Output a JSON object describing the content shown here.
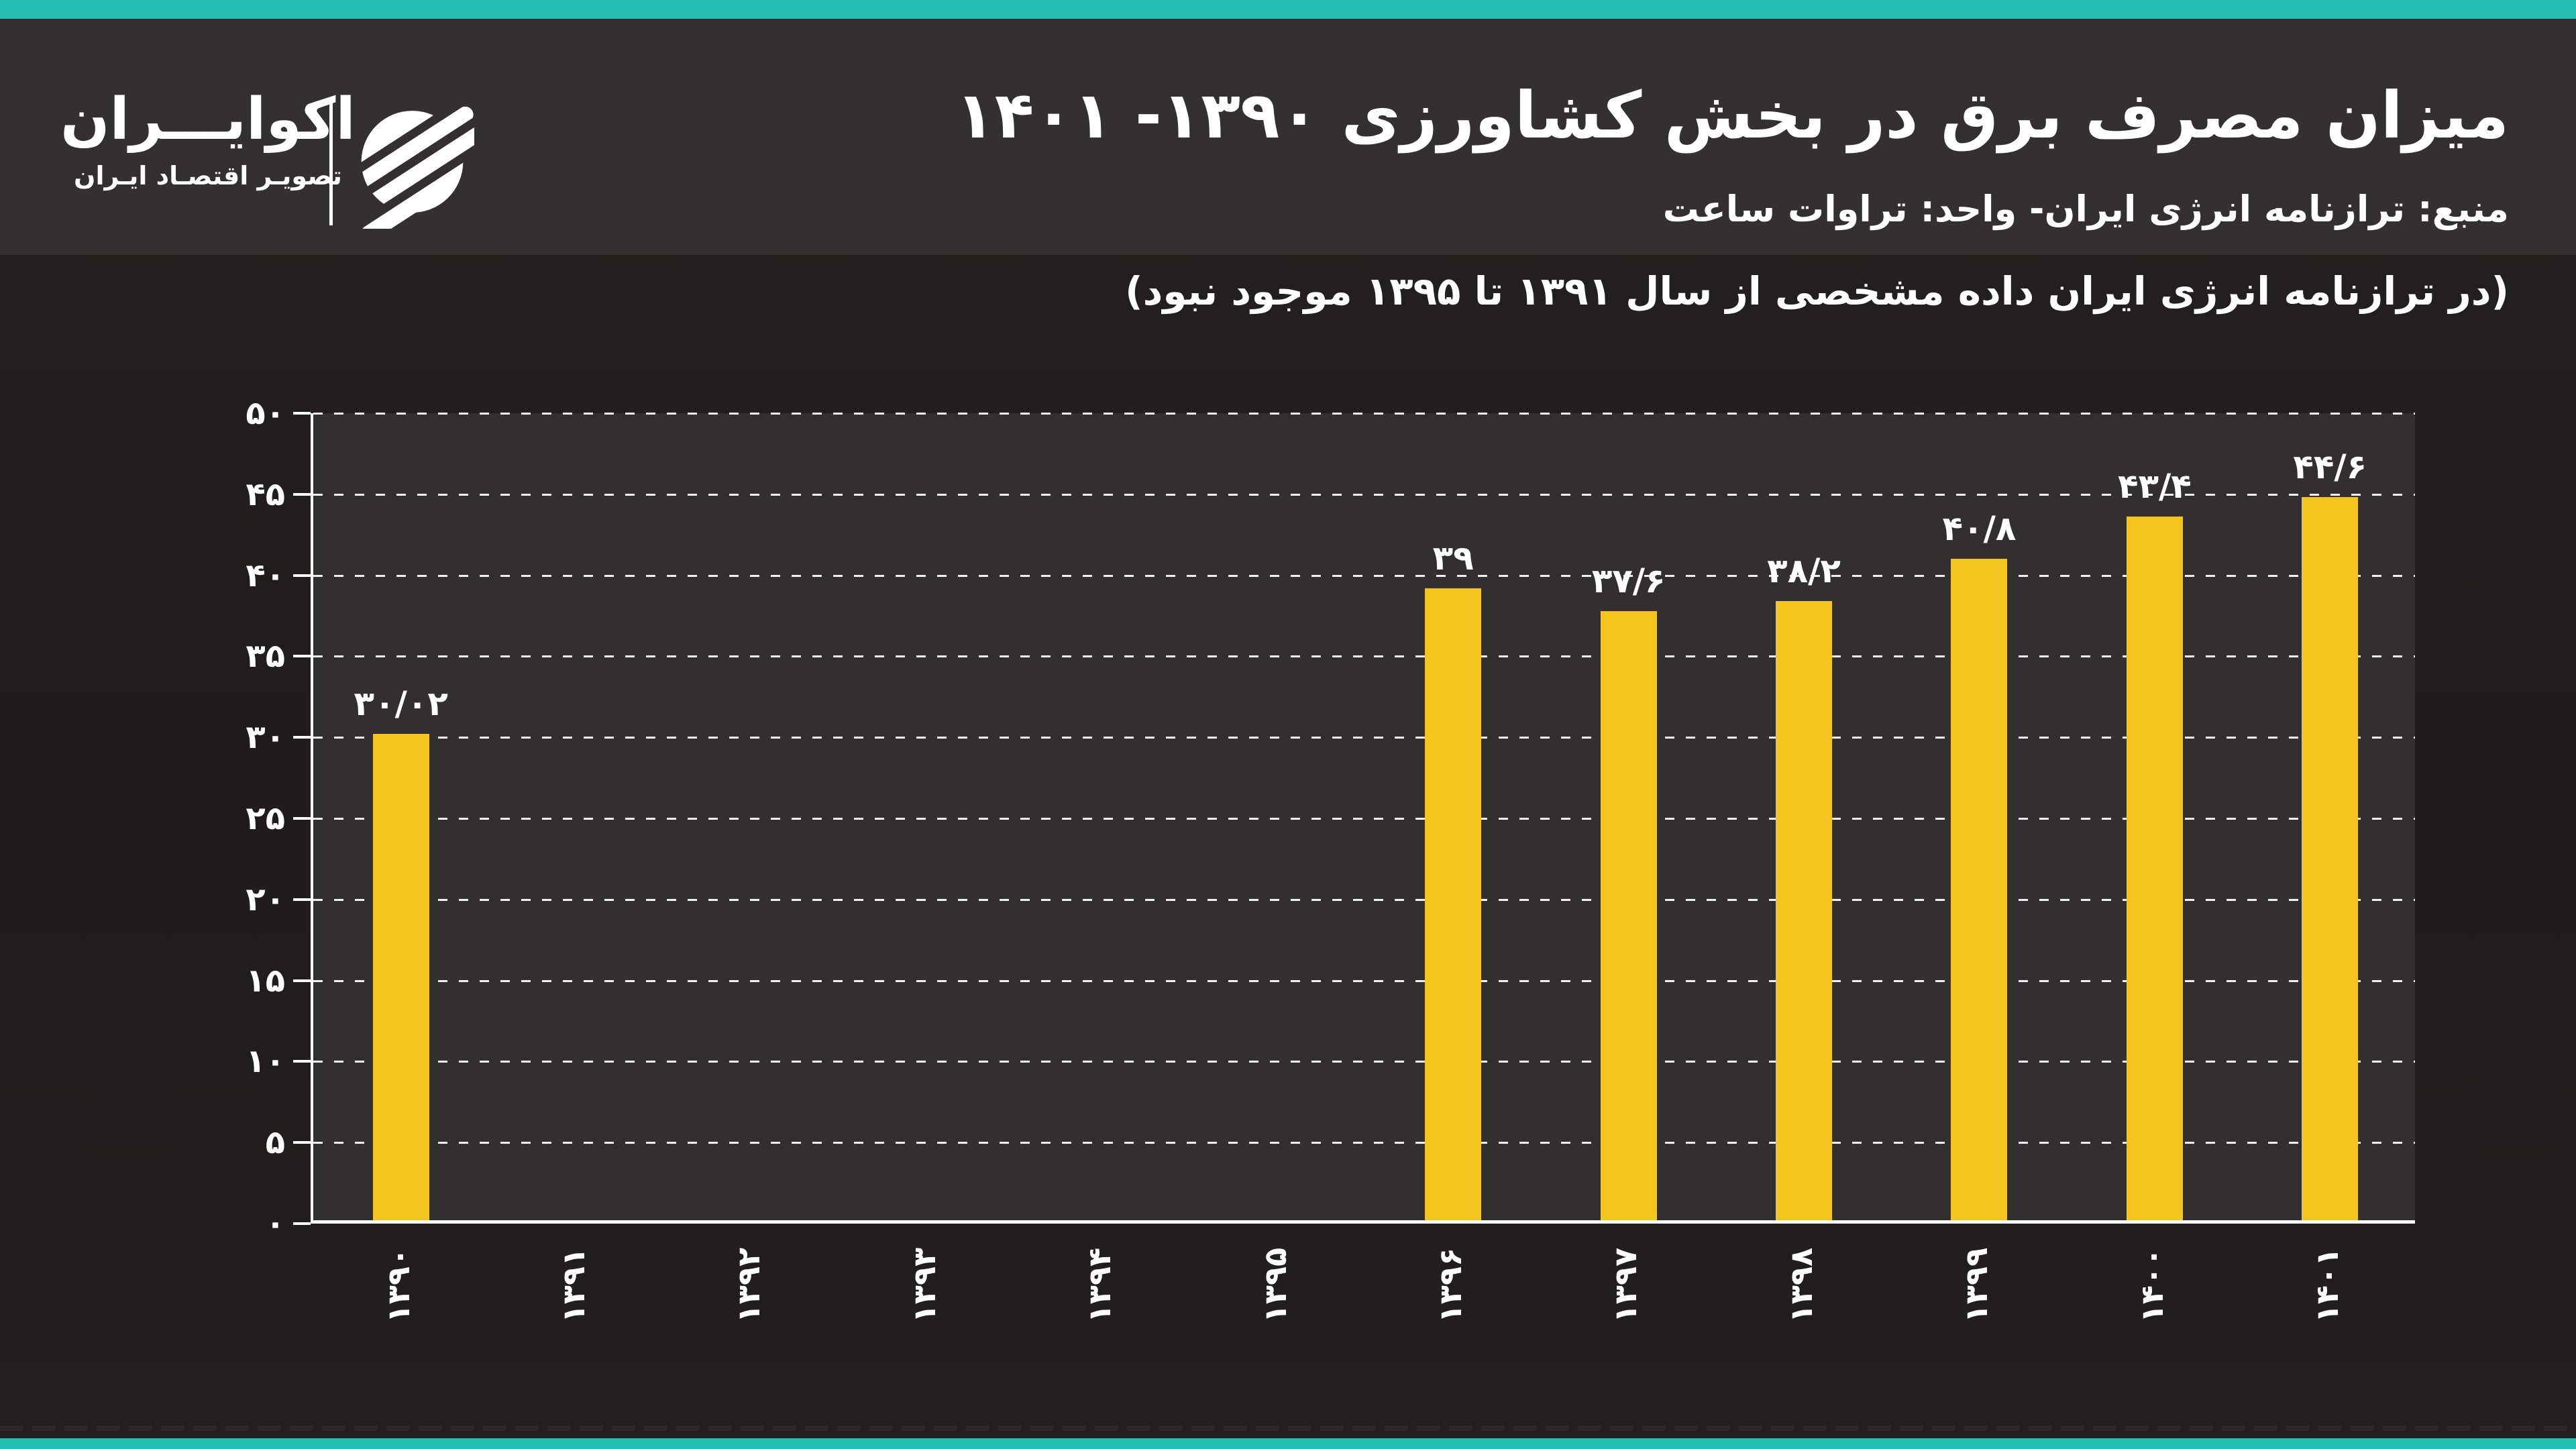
{
  "page": {
    "accent_teal": "#27BEB3",
    "header_bg": "#343031",
    "body_bg": "#242021",
    "plot_bg": "#332F30",
    "bar_color": "#F4C41F",
    "text_color": "#FFFFFF"
  },
  "brand": {
    "name": "اکوایـــران",
    "tagline": "تصویـر اقتصـاد ایـران"
  },
  "header": {
    "title": "میزان مصرف برق در بخش کشاورزی ۱۳۹۰- ۱۴۰۱",
    "subtitle": "منبع: ترازنامه انرژی ایران- واحد: تراوات ساعت"
  },
  "note": "(در ترازنامه انرژی ایران داده مشخصی از سال ۱۳۹۱ تا ۱۳۹۵ موجود نبود)",
  "chart_data": {
    "type": "bar",
    "title": "میزان مصرف برق در بخش کشاورزی ۱۳۹۰- ۱۴۰۱",
    "unit": "تراوات ساعت",
    "categories": [
      "۱۳۹۰",
      "۱۳۹۱",
      "۱۳۹۲",
      "۱۳۹۳",
      "۱۳۹۴",
      "۱۳۹۵",
      "۱۳۹۶",
      "۱۳۹۷",
      "۱۳۹۸",
      "۱۳۹۹",
      "۱۴۰۰",
      "۱۴۰۱"
    ],
    "values": [
      30.02,
      null,
      null,
      null,
      null,
      null,
      39,
      37.6,
      38.2,
      40.8,
      43.4,
      44.6
    ],
    "value_labels": [
      "۳۰/۰۲",
      "",
      "",
      "",
      "",
      "",
      "۳۹",
      "۳۷/۶",
      "۳۸/۲",
      "۴۰/۸",
      "۴۳/۴",
      "۴۴/۶"
    ],
    "xlabel": "",
    "ylabel": "",
    "ylim": [
      0,
      50
    ],
    "y_tick_step": 5,
    "y_tick_labels": [
      "۰",
      "۵",
      "۱۰",
      "۱۵",
      "۲۰",
      "۲۵",
      "۳۰",
      "۳۵",
      "۴۰",
      "۴۵",
      "۵۰"
    ],
    "grid": "horizontal-dashed",
    "legend": "none"
  }
}
